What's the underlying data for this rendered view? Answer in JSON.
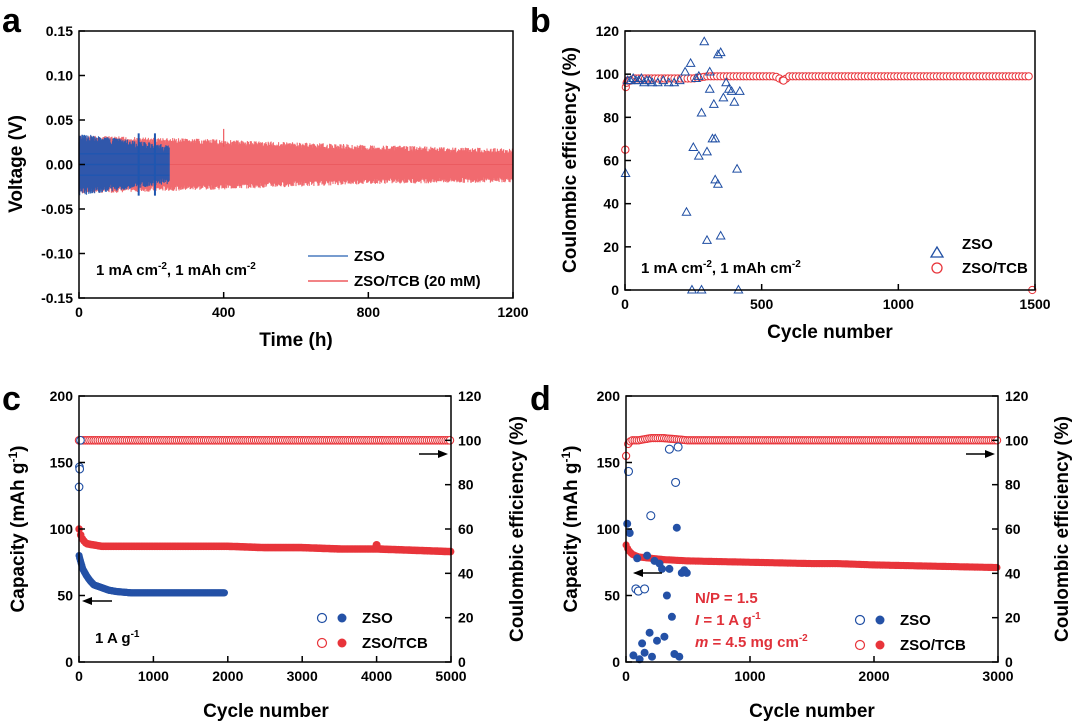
{
  "colors": {
    "zso": "#1f4ea3",
    "tcb": "#e8343a",
    "tcb_light": "#f06a6e",
    "zso_fill": "#2451a6"
  },
  "chart_data": [
    {
      "panel": "a",
      "type": "line",
      "xlabel": "Time (h)",
      "ylabel": "Voltage (V)",
      "xlim": [
        0,
        1200
      ],
      "ylim": [
        -0.15,
        0.15
      ],
      "xticks": [
        "0",
        "400",
        "800",
        "1200"
      ],
      "yticks": [
        "-0.15",
        "-0.10",
        "-0.05",
        "0.00",
        "0.05",
        "0.10",
        "0.15"
      ],
      "annotation": "1 mA cm⁻², 1 mAh cm⁻²",
      "series": [
        {
          "name": "ZSO",
          "x": [
            0,
            250
          ],
          "envelope_upper": [
            0.035,
            0.022
          ],
          "envelope_lower": [
            -0.035,
            -0.022
          ]
        },
        {
          "name": "ZSO/TCB (20 mM)",
          "x": [
            0,
            400,
            800,
            1200
          ],
          "envelope_upper": [
            0.033,
            0.028,
            0.022,
            0.018
          ],
          "envelope_lower": [
            -0.033,
            -0.028,
            -0.022,
            -0.02
          ]
        }
      ]
    },
    {
      "panel": "b",
      "type": "scatter",
      "xlabel": "Cycle number",
      "ylabel": "Coulombic efficiency (%)",
      "xlim": [
        0,
        1500
      ],
      "ylim": [
        0,
        120
      ],
      "xticks": [
        "0",
        "500",
        "1000",
        "1500"
      ],
      "yticks": [
        "0",
        "20",
        "40",
        "60",
        "80",
        "100",
        "120"
      ],
      "annotation": "1 mA cm⁻², 1 mAh cm⁻²",
      "series": [
        {
          "name": "ZSO",
          "marker": "triangle",
          "x": [
            2,
            10,
            20,
            30,
            40,
            50,
            60,
            70,
            80,
            90,
            100,
            120,
            140,
            160,
            180,
            200,
            220,
            240,
            250,
            260,
            270,
            280,
            290,
            300,
            310,
            320,
            330,
            340,
            350,
            360,
            370,
            380,
            390,
            400,
            410,
            420,
            225,
            245,
            280,
            300,
            270,
            330,
            340,
            350,
            310,
            325,
            415
          ],
          "y": [
            54,
            97,
            97,
            98,
            97,
            97,
            98,
            96,
            97,
            97,
            96,
            96,
            97,
            96,
            96,
            97,
            101,
            105,
            66,
            98,
            62,
            82,
            115,
            64,
            101,
            70,
            70,
            109,
            110,
            89,
            96,
            93,
            92,
            87,
            56,
            92,
            36,
            0,
            0,
            23,
            99,
            51,
            49,
            25,
            93,
            86,
            0
          ]
        },
        {
          "name": "ZSO/TCB",
          "marker": "circle",
          "x": [
            1,
            3,
            6,
            10,
            15,
            20,
            30,
            40,
            60,
            80,
            100,
            150,
            200,
            250,
            300,
            350,
            400,
            450,
            500,
            550,
            580,
            600,
            650,
            700,
            750,
            800,
            850,
            900,
            950,
            1000,
            1050,
            1100,
            1150,
            1200,
            1250,
            1300,
            1350,
            1400,
            1450,
            1480,
            1490
          ],
          "y": [
            65,
            94,
            96,
            97,
            97,
            97,
            98,
            98,
            98,
            98,
            98,
            98,
            98,
            98,
            99,
            99,
            99,
            99,
            99,
            99,
            97,
            99,
            99,
            99,
            99,
            99,
            99,
            99,
            99,
            99,
            99,
            99,
            99,
            99,
            99,
            99,
            99,
            99,
            99,
            99,
            0
          ]
        }
      ]
    },
    {
      "panel": "c",
      "type": "scatter",
      "xlabel": "Cycle number",
      "ylabel": "Capacity (mAh g⁻¹)",
      "y2label": "Coulombic efficiency (%)",
      "xlim": [
        0,
        5000
      ],
      "ylim": [
        0,
        200
      ],
      "y2lim": [
        0,
        120
      ],
      "xticks": [
        "0",
        "1000",
        "2000",
        "3000",
        "4000",
        "5000"
      ],
      "yticks": [
        "0",
        "50",
        "100",
        "150",
        "200"
      ],
      "y2ticks": [
        "0",
        "20",
        "40",
        "60",
        "80",
        "100",
        "120"
      ],
      "annotation": "1 A g⁻¹",
      "series": [
        {
          "name": "ZSO",
          "capacity_x": [
            1,
            20,
            50,
            100,
            150,
            200,
            300,
            400,
            500,
            700,
            1000,
            1300,
            1600,
            1960
          ],
          "capacity_y": [
            80,
            76,
            70,
            65,
            61,
            58,
            56,
            54,
            53,
            52,
            52,
            52,
            52,
            52
          ],
          "ce_x": [
            1,
            5,
            10,
            20
          ],
          "ce_y": [
            79,
            88,
            87,
            100
          ]
        },
        {
          "name": "ZSO/TCB",
          "capacity_x": [
            1,
            20,
            50,
            100,
            200,
            300,
            500,
            1000,
            1500,
            2000,
            2500,
            3000,
            3500,
            4000,
            4500,
            5000
          ],
          "capacity_y": [
            100,
            96,
            92,
            89,
            88,
            87,
            87,
            87,
            87,
            87,
            86,
            86,
            85,
            85,
            84,
            83
          ],
          "ce_x": [
            1,
            100,
            500,
            1000,
            2000,
            3000,
            4000,
            5000
          ],
          "ce_y": [
            100,
            100,
            100,
            100,
            100,
            100,
            100,
            100
          ]
        }
      ]
    },
    {
      "panel": "d",
      "type": "scatter",
      "xlabel": "Cycle number",
      "ylabel": "Capacity (mAh g⁻¹)",
      "y2label": "Coulombic efficiency (%)",
      "xlim": [
        0,
        3000
      ],
      "ylim": [
        0,
        200
      ],
      "y2lim": [
        0,
        120
      ],
      "xticks": [
        "0",
        "1000",
        "2000",
        "3000"
      ],
      "yticks": [
        "0",
        "50",
        "100",
        "150",
        "200"
      ],
      "y2ticks": [
        "0",
        "20",
        "40",
        "60",
        "80",
        "100",
        "120"
      ],
      "annotations": [
        "N/P = 1.5",
        "I = 1 A g⁻¹",
        "m = 4.5 mg cm⁻²"
      ],
      "series": [
        {
          "name": "ZSO",
          "capacity_x": [
            10,
            30,
            60,
            90,
            110,
            130,
            150,
            170,
            190,
            210,
            230,
            250,
            270,
            290,
            310,
            330,
            350,
            370,
            390,
            410,
            430,
            450,
            470,
            490
          ],
          "capacity_y": [
            104,
            97,
            5,
            78,
            2,
            14,
            7,
            80,
            22,
            4,
            76,
            16,
            74,
            70,
            19,
            50,
            70,
            34,
            6,
            101,
            4,
            67,
            69,
            67
          ],
          "ce_x": [
            20,
            80,
            100,
            150,
            200,
            350,
            400,
            420
          ],
          "ce_y": [
            86,
            33,
            32,
            33,
            66,
            96,
            81,
            97
          ]
        },
        {
          "name": "ZSO/TCB",
          "capacity_x": [
            1,
            20,
            50,
            100,
            200,
            300,
            500,
            1000,
            1500,
            1700,
            2000,
            2500,
            3000
          ],
          "capacity_y": [
            88,
            84,
            81,
            79,
            78,
            77,
            76,
            75,
            74,
            74,
            73,
            72,
            71
          ],
          "ce_x": [
            1,
            20,
            50,
            100,
            200,
            300,
            500,
            1000,
            1500,
            2000,
            2500,
            3000
          ],
          "ce_y": [
            93,
            99,
            100,
            100,
            101,
            101,
            100,
            100,
            100,
            100,
            100,
            100
          ]
        }
      ]
    }
  ],
  "labels": {
    "panel_a": "a",
    "panel_b": "b",
    "panel_c": "c",
    "panel_d": "d",
    "a_note_prefix": "1 mA cm",
    "a_note_sup1": "-2",
    "a_note_mid": ", 1 mAh cm",
    "a_note_sup2": "-2",
    "a_leg_zso": "ZSO",
    "a_leg_tcb": "ZSO/TCB (20 mM)",
    "a_xlabel": "Time (h)",
    "a_ylabel": "Voltage (V)",
    "b_xlabel": "Cycle number",
    "b_ylabel": "Coulombic efficiency (%)",
    "b_leg_zso": "ZSO",
    "b_leg_tcb": "ZSO/TCB",
    "c_xlabel": "Cycle number",
    "c_ylabel_main": "Capacity (mAh g",
    "c_ylabel_sup": "-1",
    "c_ylabel_end": ")",
    "c_y2label": "Coulombic efficiency (%)",
    "c_leg_zso": "ZSO",
    "c_leg_tcb": "ZSO/TCB",
    "c_note": "1 A g",
    "c_note_sup": "-1",
    "d_xlabel": "Cycle number",
    "d_ylabel_main": "Capacity (mAh g",
    "d_ylabel_sup": "-1",
    "d_ylabel_end": ")",
    "d_y2label": "Coulombic efficiency (%)",
    "d_leg_zso": "ZSO",
    "d_leg_tcb": "ZSO/TCB",
    "d_note1": "N/P = 1.5",
    "d_note2_i": "I",
    "d_note2_rest": " = 1 A g",
    "d_note2_sup": "-1",
    "d_note3_m": "m",
    "d_note3_rest": " = 4.5 mg cm",
    "d_note3_sup": "-2"
  }
}
